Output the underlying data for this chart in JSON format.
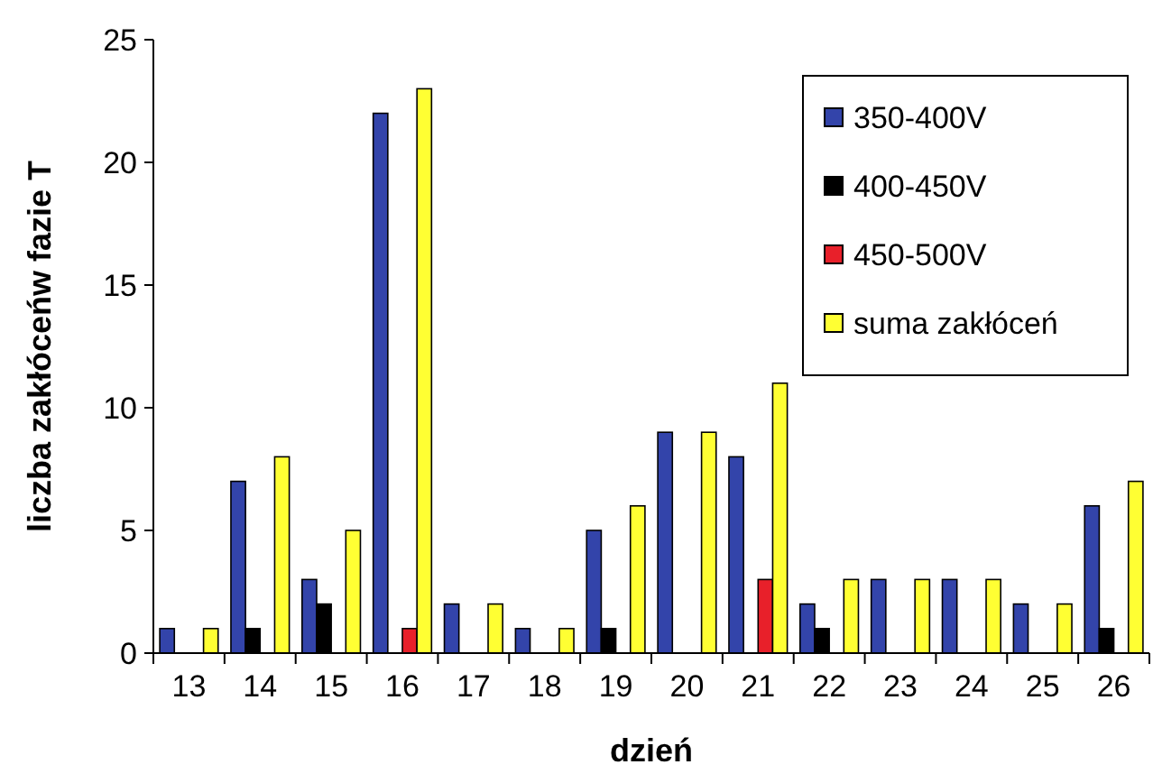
{
  "chart_data": {
    "type": "bar",
    "xlabel": "dzień",
    "ylabel": "liczba zakłóceńw fazie T",
    "categories": [
      "13",
      "14",
      "15",
      "16",
      "17",
      "18",
      "19",
      "20",
      "21",
      "22",
      "23",
      "24",
      "25",
      "26"
    ],
    "series": [
      {
        "name": "350-400V",
        "color": "#3344aa",
        "values": [
          1,
          7,
          3,
          22,
          2,
          1,
          5,
          9,
          8,
          2,
          3,
          3,
          2,
          6
        ]
      },
      {
        "name": "400-450V",
        "color": "#000000",
        "values": [
          0,
          1,
          2,
          0,
          0,
          0,
          1,
          0,
          0,
          1,
          0,
          0,
          0,
          1
        ]
      },
      {
        "name": "450-500V",
        "color": "#e8202a",
        "values": [
          0,
          0,
          0,
          1,
          0,
          0,
          0,
          0,
          3,
          0,
          0,
          0,
          0,
          0
        ]
      },
      {
        "name": "suma zakłóceń",
        "color": "#ffff33",
        "values": [
          1,
          8,
          5,
          23,
          2,
          1,
          6,
          9,
          11,
          3,
          3,
          3,
          2,
          7
        ]
      }
    ],
    "ylim": [
      0,
      25
    ],
    "yticks": [
      0,
      5,
      10,
      15,
      20,
      25
    ],
    "grid": false,
    "legend": "top right"
  }
}
